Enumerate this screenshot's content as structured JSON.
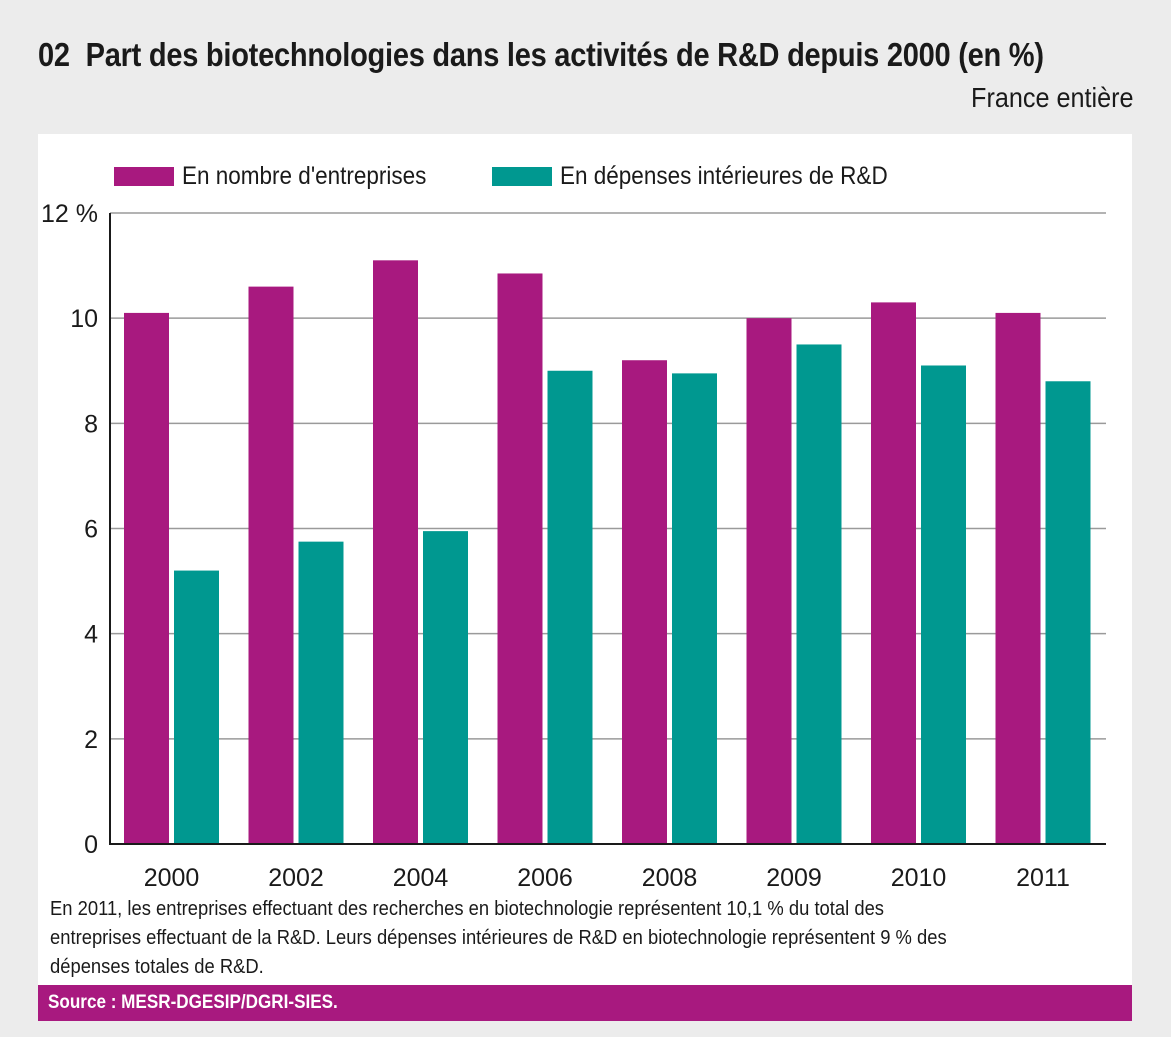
{
  "header": {
    "number": "02",
    "title": "Part des biotechnologies dans les activités de R&D depuis 2000 (en %)",
    "subtitle": "France entière"
  },
  "colors": {
    "series1": "#a8197f",
    "series2": "#009890",
    "source_bar": "#a8197f"
  },
  "chart_data": {
    "type": "bar",
    "title": "Part des biotechnologies dans les activités de R&D depuis 2000 (en %)",
    "subtitle": "France entière",
    "xlabel": "",
    "ylabel": "",
    "categories": [
      "2000",
      "2002",
      "2004",
      "2006",
      "2008",
      "2009",
      "2010",
      "2011"
    ],
    "series": [
      {
        "name": "En nombre d'entreprises",
        "values": [
          10.1,
          10.6,
          11.1,
          10.85,
          9.2,
          10.0,
          10.3,
          10.1
        ]
      },
      {
        "name": "En dépenses intérieures de R&D",
        "values": [
          5.2,
          5.75,
          5.95,
          9.0,
          8.95,
          9.5,
          9.1,
          8.8
        ]
      }
    ],
    "ylim": [
      0,
      12
    ],
    "yticks": [
      0,
      2,
      4,
      6,
      8,
      10,
      12
    ],
    "ytick_labels": [
      "0",
      "2",
      "4",
      "6",
      "8",
      "10",
      "12 %"
    ],
    "grid": true,
    "legend": "top-left"
  },
  "note": "En 2011, les entreprises effectuant des recherches en biotechnologie représentent 10,1 % du total des entreprises effectuant de la R&D. Leurs dépenses intérieures de R&D en biotechnologie représentent 9 % des dépenses totales de R&D.",
  "source": "Source : MESR-DGESIP/DGRI-SIES."
}
